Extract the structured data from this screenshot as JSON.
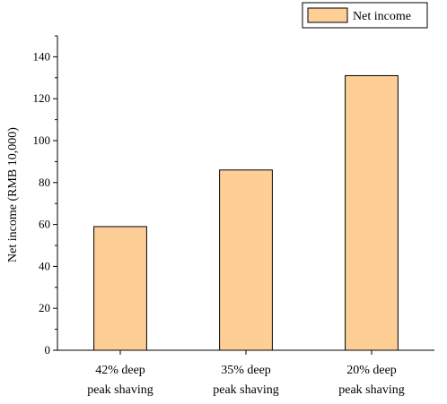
{
  "chart_data": {
    "type": "bar",
    "categories": [
      [
        "42% deep",
        "peak shaving"
      ],
      [
        "35% deep",
        "peak shaving"
      ],
      [
        "20% deep",
        "peak shaving"
      ]
    ],
    "series": [
      {
        "name": "Net income",
        "values": [
          59,
          86,
          131
        ]
      }
    ],
    "xlabel": "",
    "ylabel": "Net income (RMB 10,000)",
    "ylim": [
      0,
      150
    ],
    "yticks": [
      0,
      20,
      40,
      60,
      80,
      100,
      120,
      140
    ],
    "grid": false,
    "legend_position": "top-right",
    "colors": {
      "bar_fill": "#FDCF97",
      "bar_stroke": "#000000",
      "axis": "#000000"
    }
  }
}
